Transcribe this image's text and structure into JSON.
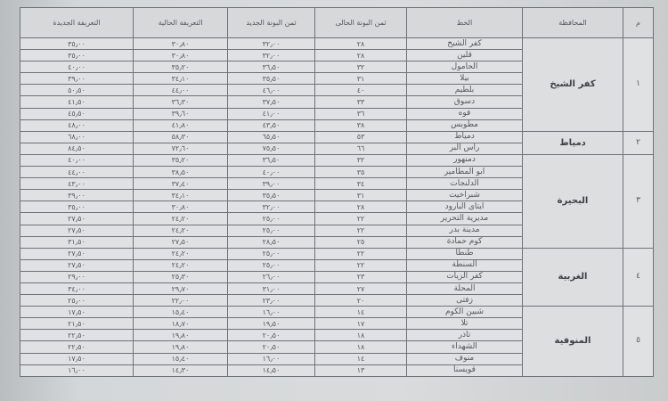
{
  "headers": {
    "index": "م",
    "governorate": "المحافظة",
    "line": "الخط",
    "current_price": "ثمن البونة الحالى",
    "new_price": "ثمن البونة الجديد",
    "current_tariff": "التعريفة الحالية",
    "new_tariff": "التعريفة الجديدة"
  },
  "groups": [
    {
      "index": "١",
      "governorate": "كفر الشيخ",
      "rows": [
        {
          "line": "كفر الشيخ",
          "current_price": "٢٨",
          "new_price": "٣٢٫٠٠",
          "current_tariff": "٣٠٫٨٠",
          "new_tariff": "٣٥٫٠٠"
        },
        {
          "line": "قلين",
          "current_price": "٢٨",
          "new_price": "٣٢٫٠٠",
          "current_tariff": "٣٠٫٨٠",
          "new_tariff": "٣٥٫٠٠"
        },
        {
          "line": "الحامول",
          "current_price": "٣٢",
          "new_price": "٣٦٫٥٠",
          "current_tariff": "٣٥٫٢٠",
          "new_tariff": "٤٠٫٠٠"
        },
        {
          "line": "بيلا",
          "current_price": "٣١",
          "new_price": "٣٥٫٥٠",
          "current_tariff": "٣٤٫١٠",
          "new_tariff": "٣٩٫٠٠"
        },
        {
          "line": "بلطيم",
          "current_price": "٤٠",
          "new_price": "٤٦٫٠٠",
          "current_tariff": "٤٤٫٠٠",
          "new_tariff": "٥٠٫٥٠"
        },
        {
          "line": "دسوق",
          "current_price": "٣٣",
          "new_price": "٣٧٫٥٠",
          "current_tariff": "٣٦٫٣٠",
          "new_tariff": "٤١٫٥٠"
        },
        {
          "line": "فوه",
          "current_price": "٣٦",
          "new_price": "٤١٫٠٠",
          "current_tariff": "٣٩٫٦٠",
          "new_tariff": "٤٥٫٥٠"
        },
        {
          "line": "مطوبس",
          "current_price": "٣٨",
          "new_price": "٤٣٫٥٠",
          "current_tariff": "٤١٫٨٠",
          "new_tariff": "٤٨٫٠٠"
        }
      ]
    },
    {
      "index": "٢",
      "governorate": "دمياط",
      "rows": [
        {
          "line": "دمياط",
          "current_price": "٥٣",
          "new_price": "٦٥٫٥٠",
          "current_tariff": "٥٨٫٣٠",
          "new_tariff": "٦٨٫٠٠"
        },
        {
          "line": "راس البر",
          "current_price": "٦٦",
          "new_price": "٧٥٫٥٠",
          "current_tariff": "٧٢٫٦٠",
          "new_tariff": "٨٤٫٥٠"
        }
      ]
    },
    {
      "index": "٣",
      "governorate": "البحيرة",
      "rows": [
        {
          "line": "دمنهور",
          "current_price": "٣٢",
          "new_price": "٣٦٫٥٠",
          "current_tariff": "٣٥٫٢٠",
          "new_tariff": "٤٠٫٠٠"
        },
        {
          "line": "ابو المطامير",
          "current_price": "٣٥",
          "new_price": "٤٠٫٠٠",
          "current_tariff": "٣٨٫٥٠",
          "new_tariff": "٤٤٫٠٠"
        },
        {
          "line": "الدلنجات",
          "current_price": "٣٤",
          "new_price": "٣٩٫٠٠",
          "current_tariff": "٣٧٫٤٠",
          "new_tariff": "٤٣٫٠٠"
        },
        {
          "line": "شبراخيت",
          "current_price": "٣١",
          "new_price": "٣٥٫٥٠",
          "current_tariff": "٣٤٫١٠",
          "new_tariff": "٣٩٫٠٠"
        },
        {
          "line": "ايتاى البارود",
          "current_price": "٢٨",
          "new_price": "٣٢٫٠٠",
          "current_tariff": "٣٠٫٨٠",
          "new_tariff": "٣٥٫٠٠"
        },
        {
          "line": "مديرية التحرير",
          "current_price": "٢٢",
          "new_price": "٢٥٫٠٠",
          "current_tariff": "٢٤٫٢٠",
          "new_tariff": "٢٧٫٥٠"
        },
        {
          "line": "مدينة بدر",
          "current_price": "٢٢",
          "new_price": "٢٥٫٠٠",
          "current_tariff": "٢٤٫٢٠",
          "new_tariff": "٢٧٫٥٠"
        },
        {
          "line": "كوم حمادة",
          "current_price": "٢٥",
          "new_price": "٢٨٫٥٠",
          "current_tariff": "٢٧٫٥٠",
          "new_tariff": "٣١٫٥٠"
        }
      ]
    },
    {
      "index": "٤",
      "governorate": "الغربية",
      "rows": [
        {
          "line": "طنطا",
          "current_price": "٢٢",
          "new_price": "٢٥٫٠٠",
          "current_tariff": "٢٤٫٢٠",
          "new_tariff": "٢٧٫٥٠"
        },
        {
          "line": "السنطة",
          "current_price": "٢٢",
          "new_price": "٢٥٫٠٠",
          "current_tariff": "٢٤٫٢٠",
          "new_tariff": "٢٧٫٥٠"
        },
        {
          "line": "كفر الزيات",
          "current_price": "٢٣",
          "new_price": "٢٦٫٠٠",
          "current_tariff": "٢٥٫٣٠",
          "new_tariff": "٢٩٫٠٠"
        },
        {
          "line": "المحلة",
          "current_price": "٢٧",
          "new_price": "٣١٫٠٠",
          "current_tariff": "٢٩٫٧٠",
          "new_tariff": "٣٤٫٠٠"
        },
        {
          "line": "زفتى",
          "current_price": "٢٠",
          "new_price": "٢٣٫٠٠",
          "current_tariff": "٢٢٫٠٠",
          "new_tariff": "٢٥٫٠٠"
        }
      ]
    },
    {
      "index": "٥",
      "governorate": "المنوفية",
      "rows": [
        {
          "line": "شبين الكوم",
          "current_price": "١٤",
          "new_price": "١٦٫٠٠",
          "current_tariff": "١٥٫٤٠",
          "new_tariff": "١٧٫٥٠"
        },
        {
          "line": "تلا",
          "current_price": "١٧",
          "new_price": "١٩٫٥٠",
          "current_tariff": "١٨٫٧٠",
          "new_tariff": "٢١٫٥٠"
        },
        {
          "line": "تاذر",
          "current_price": "١٨",
          "new_price": "٢٠٫٥٠",
          "current_tariff": "١٩٫٨٠",
          "new_tariff": "٢٢٫٥٠"
        },
        {
          "line": "الشهداء",
          "current_price": "١٨",
          "new_price": "٢٠٫٥٠",
          "current_tariff": "١٩٫٨٠",
          "new_tariff": "٢٢٫٥٠"
        },
        {
          "line": "منوف",
          "current_price": "١٤",
          "new_price": "١٦٫٠٠",
          "current_tariff": "١٥٫٤٠",
          "new_tariff": "١٧٫٥٠"
        },
        {
          "line": "قويسنا",
          "current_price": "١٣",
          "new_price": "١٤٫٥٠",
          "current_tariff": "١٤٫٣٠",
          "new_tariff": "١٦٫٠٠"
        }
      ]
    }
  ]
}
